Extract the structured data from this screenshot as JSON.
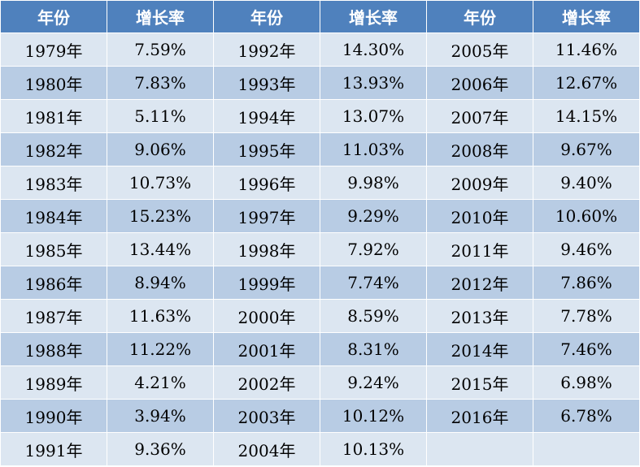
{
  "table": {
    "header": [
      "年份",
      "增长率",
      "年份",
      "增长率",
      "年份",
      "增长率"
    ],
    "rows": [
      [
        "1979年",
        "7.59%",
        "1992年",
        "14.30%",
        "2005年",
        "11.46%"
      ],
      [
        "1980年",
        "7.83%",
        "1993年",
        "13.93%",
        "2006年",
        "12.67%"
      ],
      [
        "1981年",
        "5.11%",
        "1994年",
        "13.07%",
        "2007年",
        "14.15%"
      ],
      [
        "1982年",
        "9.06%",
        "1995年",
        "11.03%",
        "2008年",
        "9.67%"
      ],
      [
        "1983年",
        "10.73%",
        "1996年",
        "9.98%",
        "2009年",
        "9.40%"
      ],
      [
        "1984年",
        "15.23%",
        "1997年",
        "9.29%",
        "2010年",
        "10.60%"
      ],
      [
        "1985年",
        "13.44%",
        "1998年",
        "7.92%",
        "2011年",
        "9.46%"
      ],
      [
        "1986年",
        "8.94%",
        "1999年",
        "7.74%",
        "2012年",
        "7.86%"
      ],
      [
        "1987年",
        "11.63%",
        "2000年",
        "8.59%",
        "2013年",
        "7.78%"
      ],
      [
        "1988年",
        "11.22%",
        "2001年",
        "8.31%",
        "2014年",
        "7.46%"
      ],
      [
        "1989年",
        "4.21%",
        "2002年",
        "9.24%",
        "2015年",
        "6.98%"
      ],
      [
        "1990年",
        "3.94%",
        "2003年",
        "10.12%",
        "2016年",
        "6.78%"
      ],
      [
        "1991年",
        "9.36%",
        "2004年",
        "10.13%"
      ]
    ]
  }
}
